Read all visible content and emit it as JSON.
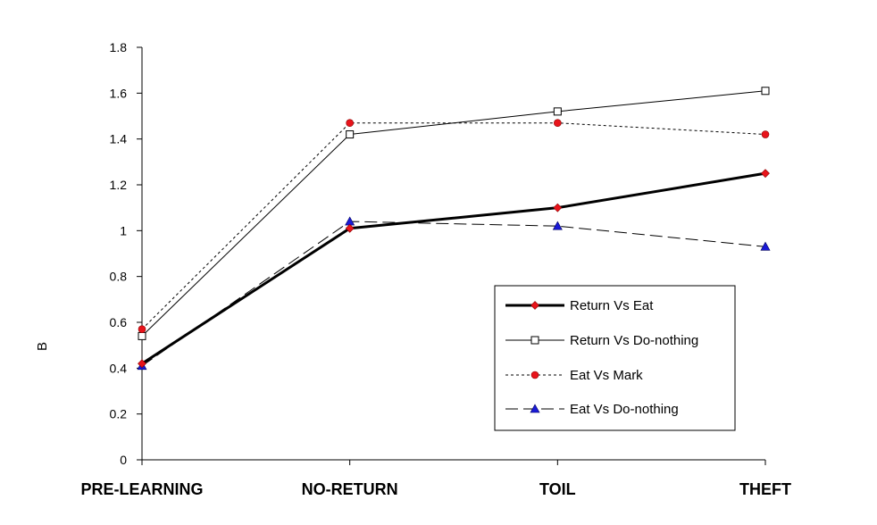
{
  "chart_data": {
    "type": "line",
    "title": "",
    "xlabel": "",
    "ylabel": "B",
    "categories": [
      "PRE-LEARNING",
      "NO-RETURN",
      "TOIL",
      "THEFT"
    ],
    "ylim": [
      0,
      1.8
    ],
    "yticks": [
      "0",
      "0.2",
      "0.4",
      "0.6",
      "0.8",
      "1",
      "1.2",
      "1.4",
      "1.6",
      "1.8"
    ],
    "grid": false,
    "legend_position": "bottom-right",
    "series": [
      {
        "name": "Return Vs Eat",
        "values": [
          0.42,
          1.01,
          1.1,
          1.25
        ],
        "line": "solid-bold",
        "marker": "diamond",
        "marker_color": "#e8141b"
      },
      {
        "name": "Return Vs Do-nothing",
        "values": [
          0.54,
          1.42,
          1.52,
          1.61
        ],
        "line": "solid",
        "marker": "square",
        "marker_color": "#ffffff"
      },
      {
        "name": "Eat Vs Mark",
        "values": [
          0.57,
          1.47,
          1.47,
          1.42
        ],
        "line": "dotted",
        "marker": "circle",
        "marker_color": "#e8141b"
      },
      {
        "name": "Eat Vs Do-nothing",
        "values": [
          0.41,
          1.04,
          1.02,
          0.93
        ],
        "line": "long-dash",
        "marker": "triangle",
        "marker_color": "#1a1ad6"
      }
    ]
  }
}
